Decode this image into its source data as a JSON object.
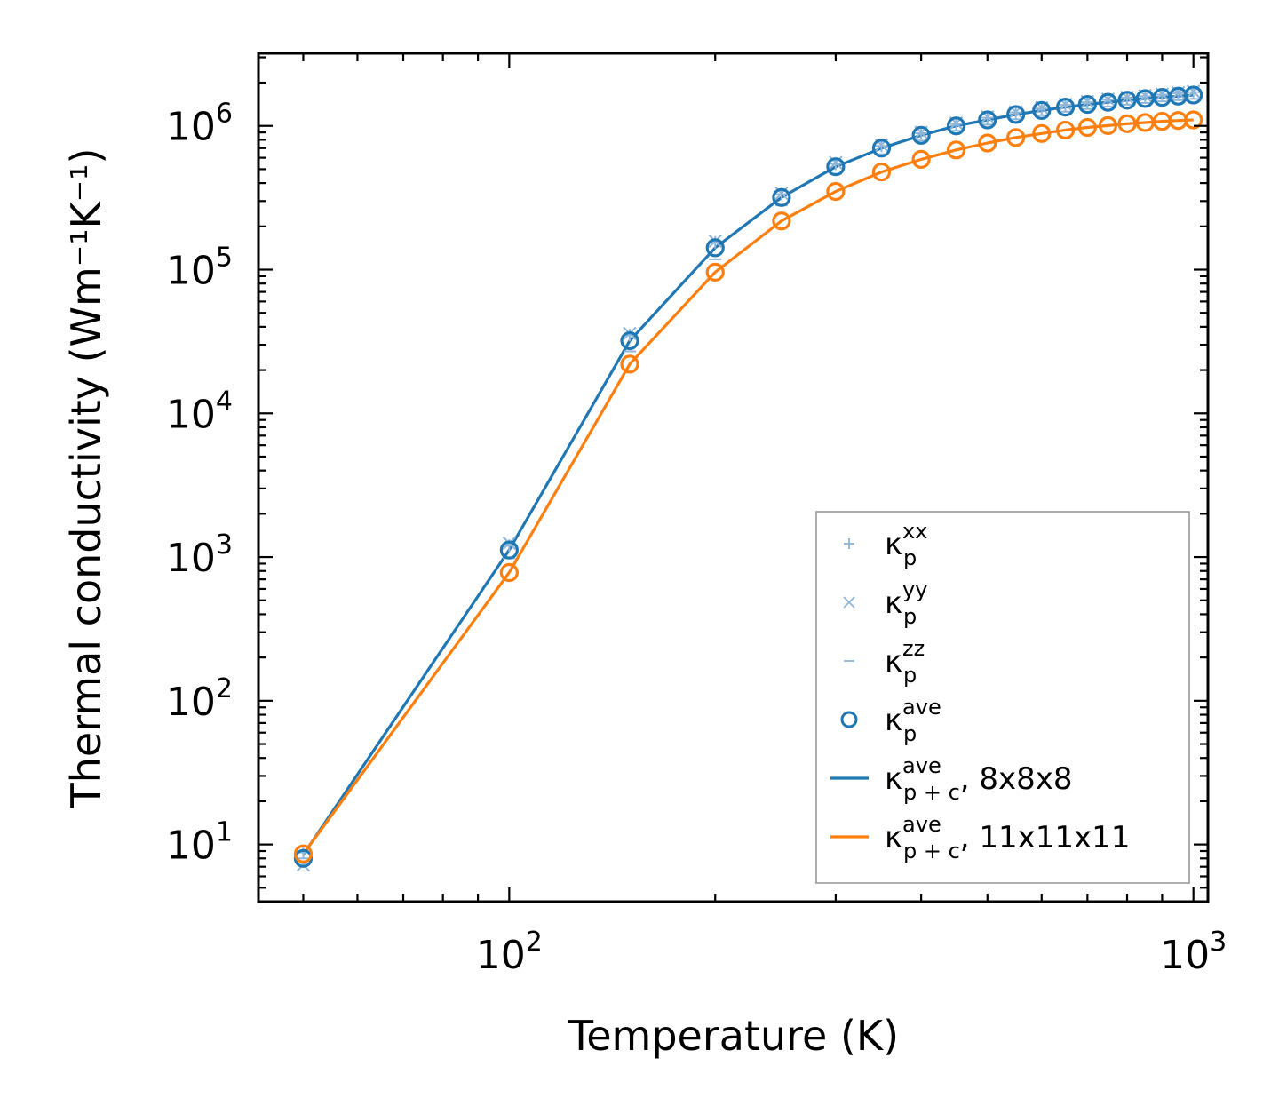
{
  "chart_data": {
    "type": "line",
    "title": "",
    "xlabel": "Temperature (K)",
    "ylabel": "Thermal conductivity (Wm⁻¹K⁻¹)",
    "xscale": "log",
    "yscale": "log",
    "xlim": [
      43,
      1050
    ],
    "ylim": [
      4,
      3200000
    ],
    "x_ticks": [
      {
        "value": 100,
        "base": "10",
        "exp": "2"
      },
      {
        "value": 1000,
        "base": "10",
        "exp": "3"
      }
    ],
    "y_ticks": [
      {
        "value": 10,
        "base": "10",
        "exp": "1"
      },
      {
        "value": 100,
        "base": "10",
        "exp": "2"
      },
      {
        "value": 1000,
        "base": "10",
        "exp": "3"
      },
      {
        "value": 10000,
        "base": "10",
        "exp": "4"
      },
      {
        "value": 100000,
        "base": "10",
        "exp": "5"
      },
      {
        "value": 1000000,
        "base": "10",
        "exp": "6"
      }
    ],
    "x": [
      50,
      100,
      150,
      200,
      250,
      300,
      350,
      400,
      450,
      500,
      550,
      600,
      650,
      700,
      750,
      800,
      850,
      900,
      950,
      1000
    ],
    "series": [
      {
        "name": "8x8x8",
        "color": "#1f77b4",
        "line": [
          8.5,
          1120,
          32000,
          142000,
          318000,
          520000,
          700000,
          860000,
          1000000,
          1100000,
          1200000,
          1280000,
          1350000,
          1410000,
          1460000,
          1510000,
          1550000,
          1580000,
          1610000,
          1640000
        ],
        "xx": [
          8.8,
          1200,
          35000,
          155000,
          335000,
          545000,
          725000,
          890000,
          1030000,
          1140000,
          1240000,
          1320000,
          1400000,
          1460000,
          1520000,
          1570000,
          1610000,
          1650000,
          1690000,
          1720000
        ],
        "yy": [
          7.2,
          1250,
          36000,
          158000,
          340000,
          555000,
          735000,
          900000,
          1045000,
          1155000,
          1250000,
          1335000,
          1410000,
          1475000,
          1530000,
          1580000,
          1625000,
          1665000,
          1700000,
          1735000
        ],
        "zz": [
          8.0,
          980,
          27000,
          118000,
          280000,
          465000,
          635000,
          790000,
          925000,
          1020000,
          1110000,
          1185000,
          1255000,
          1310000,
          1360000,
          1405000,
          1445000,
          1480000,
          1510000,
          1540000
        ],
        "ave": [
          8.0,
          1120,
          32000,
          142000,
          318000,
          520000,
          700000,
          860000,
          1000000,
          1100000,
          1200000,
          1280000,
          1350000,
          1410000,
          1460000,
          1510000,
          1550000,
          1580000,
          1610000,
          1640000
        ]
      },
      {
        "name": "11x11x11",
        "color": "#ff7f0e",
        "line": [
          8.6,
          780,
          22000,
          96000,
          218000,
          350000,
          478000,
          585000,
          680000,
          760000,
          830000,
          885000,
          935000,
          975000,
          1005000,
          1035000,
          1055000,
          1075000,
          1090000,
          1100000
        ],
        "ave": [
          8.6,
          780,
          22000,
          96000,
          218000,
          350000,
          478000,
          585000,
          680000,
          760000,
          830000,
          885000,
          935000,
          975000,
          1005000,
          1035000,
          1055000,
          1075000,
          1090000,
          1100000
        ]
      }
    ],
    "legend": {
      "position": "lower-right",
      "entries": [
        {
          "marker": "plus",
          "color": "#8fb6d8",
          "sym": "κ",
          "sub": "p",
          "sup": "xx",
          "suffix": ""
        },
        {
          "marker": "cross",
          "color": "#8fb6d8",
          "sym": "κ",
          "sub": "p",
          "sup": "yy",
          "suffix": ""
        },
        {
          "marker": "dash",
          "color": "#8fb6d8",
          "sym": "κ",
          "sub": "p",
          "sup": "zz",
          "suffix": ""
        },
        {
          "marker": "circle",
          "color": "#1f77b4",
          "sym": "κ",
          "sub": "p",
          "sup": "ave",
          "suffix": ""
        },
        {
          "marker": "line",
          "color": "#1f77b4",
          "sym": "κ",
          "sub": "p + c",
          "sup": "ave",
          "suffix": ", 8x8x8"
        },
        {
          "marker": "line",
          "color": "#ff7f0e",
          "sym": "κ",
          "sub": "p + c",
          "sup": "ave",
          "suffix": ", 11x11x11"
        }
      ]
    }
  }
}
